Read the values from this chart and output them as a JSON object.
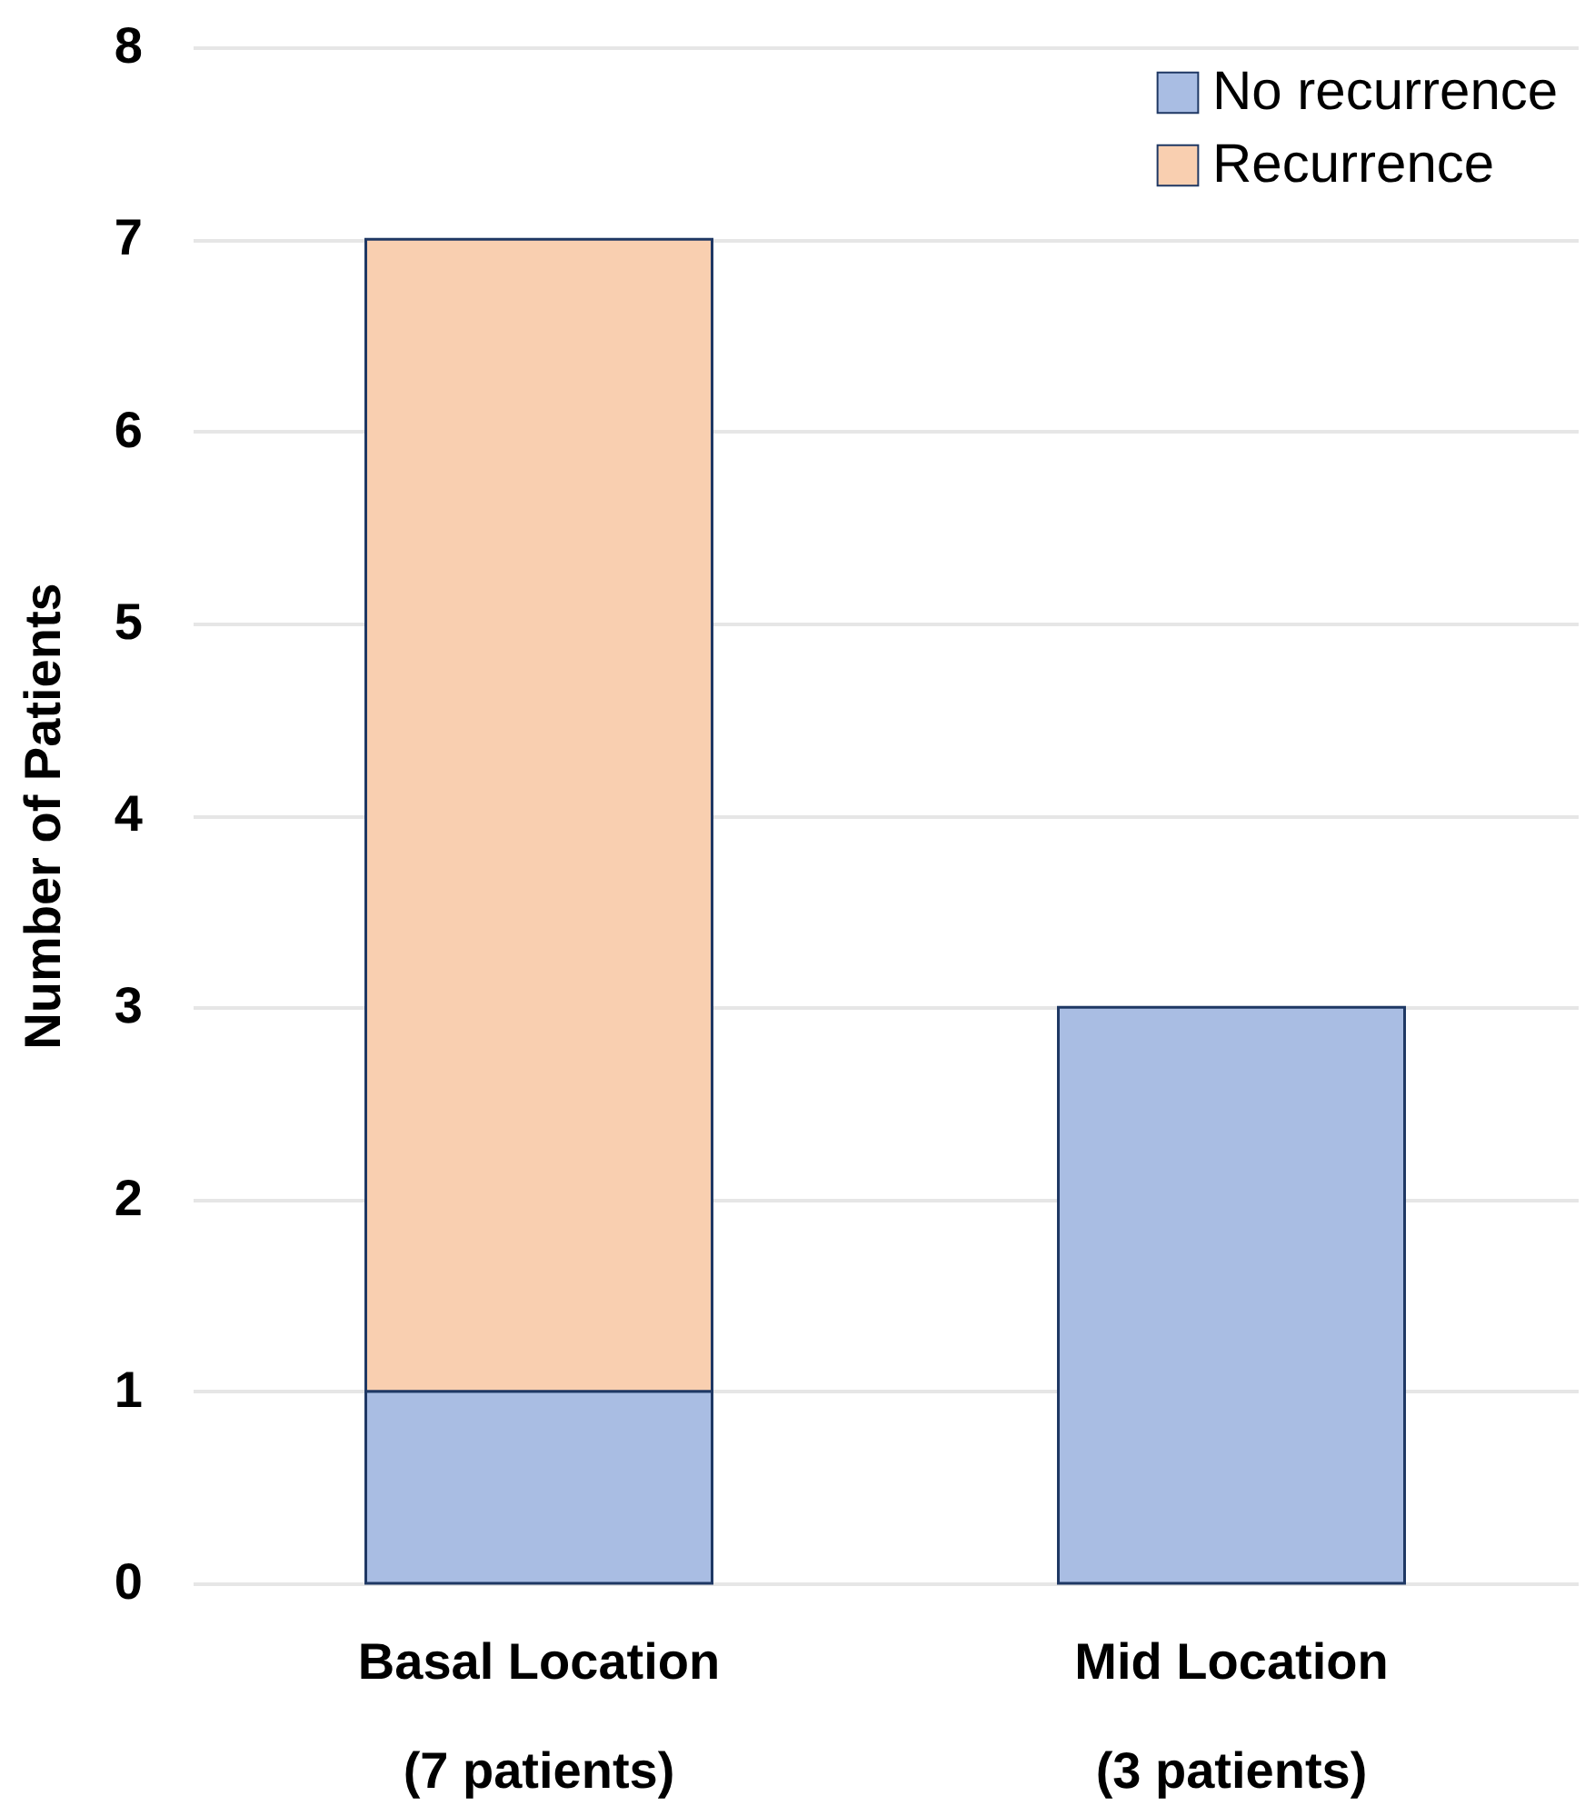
{
  "chart_data": {
    "type": "bar",
    "stacked": true,
    "ylabel": "Number of Patients",
    "categories": [
      "Basal Location\n(7 patients)",
      "Mid Location\n(3 patients)"
    ],
    "series": [
      {
        "name": "No recurrence",
        "color": "#a9bde3",
        "values": [
          1,
          3
        ]
      },
      {
        "name": "Recurrence",
        "color": "#f9cfb0",
        "values": [
          6,
          null
        ]
      }
    ],
    "ylim": [
      0,
      8
    ],
    "yticks": [
      0,
      1,
      2,
      3,
      4,
      5,
      6,
      7,
      8
    ],
    "grid": "y",
    "legend": "top right"
  }
}
